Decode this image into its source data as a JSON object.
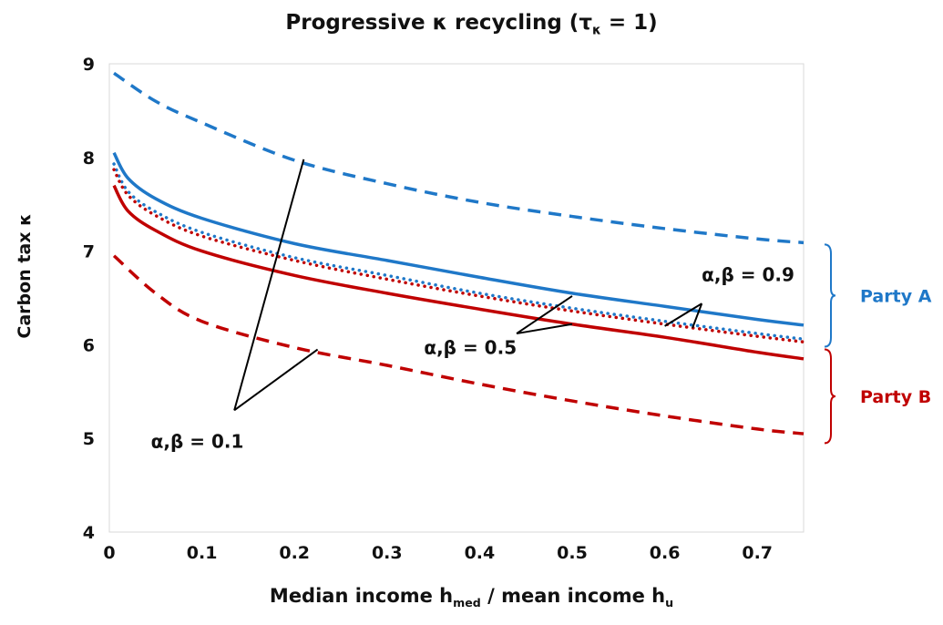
{
  "chart_data": {
    "type": "line",
    "title": "Progressive κ recycling (τ",
    "title_sub": "κ",
    "title_tail": " = 1)",
    "xlabel_parts": [
      "Median income h",
      "med",
      " / mean income h",
      "u"
    ],
    "ylabel": "Carbon tax κ",
    "xlim": [
      0,
      0.75
    ],
    "ylim": [
      4,
      9
    ],
    "xticks": [
      "0",
      "0.1",
      "0.2",
      "0.3",
      "0.4",
      "0.5",
      "0.6",
      "0.7"
    ],
    "yticks": [
      "4",
      "5",
      "6",
      "7",
      "8",
      "9"
    ],
    "grid": false,
    "colors": {
      "party_a": "#1f78c8",
      "party_b": "#c00000"
    },
    "series": [
      {
        "party": "A",
        "param": "0.1",
        "style": "dashed",
        "x": [
          0.005,
          0.05,
          0.1,
          0.2,
          0.3,
          0.4,
          0.5,
          0.6,
          0.7,
          0.75
        ],
        "y": [
          8.9,
          8.6,
          8.37,
          7.97,
          7.72,
          7.52,
          7.37,
          7.24,
          7.13,
          7.09
        ]
      },
      {
        "party": "A",
        "param": "0.5",
        "style": "solid",
        "x": [
          0.005,
          0.02,
          0.05,
          0.1,
          0.2,
          0.3,
          0.4,
          0.5,
          0.6,
          0.7,
          0.75
        ],
        "y": [
          8.05,
          7.78,
          7.56,
          7.35,
          7.08,
          6.9,
          6.72,
          6.55,
          6.41,
          6.27,
          6.21
        ]
      },
      {
        "party": "A",
        "param": "0.9",
        "style": "dotted",
        "x": [
          0.005,
          0.02,
          0.05,
          0.1,
          0.2,
          0.3,
          0.4,
          0.5,
          0.6,
          0.7,
          0.75
        ],
        "y": [
          7.93,
          7.64,
          7.42,
          7.2,
          6.93,
          6.74,
          6.55,
          6.39,
          6.25,
          6.12,
          6.06
        ]
      },
      {
        "party": "B",
        "param": "0.9",
        "style": "dotted",
        "x": [
          0.005,
          0.02,
          0.05,
          0.1,
          0.2,
          0.3,
          0.4,
          0.5,
          0.6,
          0.7,
          0.75
        ],
        "y": [
          7.87,
          7.6,
          7.38,
          7.16,
          6.9,
          6.7,
          6.52,
          6.36,
          6.22,
          6.09,
          6.03
        ]
      },
      {
        "party": "B",
        "param": "0.5",
        "style": "solid",
        "x": [
          0.005,
          0.02,
          0.05,
          0.1,
          0.2,
          0.3,
          0.4,
          0.5,
          0.6,
          0.7,
          0.75
        ],
        "y": [
          7.7,
          7.43,
          7.22,
          7.0,
          6.74,
          6.55,
          6.38,
          6.22,
          6.08,
          5.92,
          5.85
        ]
      },
      {
        "party": "B",
        "param": "0.1",
        "style": "dashed",
        "x": [
          0.005,
          0.05,
          0.1,
          0.2,
          0.3,
          0.4,
          0.5,
          0.6,
          0.7,
          0.75
        ],
        "y": [
          6.95,
          6.55,
          6.25,
          5.97,
          5.78,
          5.58,
          5.4,
          5.24,
          5.1,
          5.05
        ]
      }
    ],
    "annotations": [
      {
        "text": "α,β = 0.9"
      },
      {
        "text": "α,β = 0.5"
      },
      {
        "text": "α,β = 0.1"
      }
    ],
    "groups": [
      {
        "label": "Party A",
        "color": "#1f78c8",
        "range": [
          5.98,
          7.07
        ]
      },
      {
        "label": "Party B",
        "color": "#c00000",
        "range": [
          4.95,
          5.95
        ]
      }
    ]
  }
}
